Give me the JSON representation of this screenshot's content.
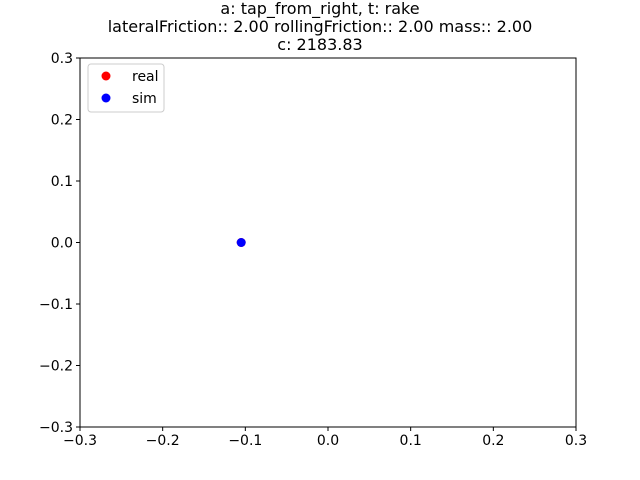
{
  "title_lines": [
    "a: tap_from_right, t: rake",
    "lateralFriction:: 2.00 rollingFriction:: 2.00 mass:: 2.00",
    "c: 2183.83"
  ],
  "chart_data": {
    "type": "scatter",
    "title": "a: tap_from_right, t: rake\nlateralFriction:: 2.00 rollingFriction:: 2.00 mass:: 2.00\nc: 2183.83",
    "xlabel": "",
    "ylabel": "",
    "xlim": [
      -0.3,
      0.3
    ],
    "ylim": [
      -0.3,
      0.3
    ],
    "xticks": [
      -0.3,
      -0.2,
      -0.1,
      0.0,
      0.1,
      0.2,
      0.3
    ],
    "yticks": [
      -0.3,
      -0.2,
      -0.1,
      0.0,
      0.1,
      0.2,
      0.3
    ],
    "xtick_labels": [
      "−0.3",
      "−0.2",
      "−0.1",
      "0.0",
      "0.1",
      "0.2",
      "0.3"
    ],
    "ytick_labels": [
      "−0.3",
      "−0.2",
      "−0.1",
      "0.0",
      "0.1",
      "0.2",
      "0.3"
    ],
    "grid": false,
    "legend_position": "top-left",
    "series": [
      {
        "name": "real",
        "color": "#ff0000",
        "points": [
          [
            -0.105,
            0.0
          ]
        ]
      },
      {
        "name": "sim",
        "color": "#0000ff",
        "points": [
          [
            -0.105,
            0.0
          ]
        ]
      }
    ]
  }
}
